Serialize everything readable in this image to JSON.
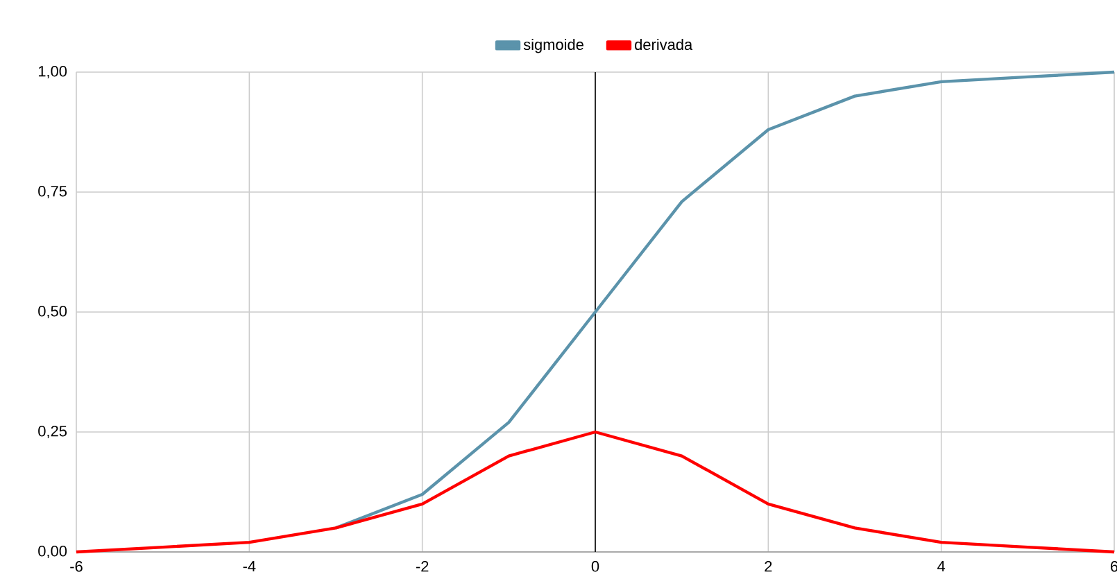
{
  "chart_data": {
    "type": "line",
    "x": [
      -6,
      -5,
      -4,
      -3,
      -2,
      -1,
      0,
      1,
      2,
      3,
      4,
      5,
      6
    ],
    "series": [
      {
        "name": "sigmoide",
        "color": "#5b93ab",
        "values": [
          null,
          null,
          null,
          0.05,
          0.12,
          0.27,
          0.5,
          0.73,
          0.88,
          0.95,
          0.98,
          0.99,
          1.0
        ]
      },
      {
        "name": "derivada",
        "color": "#ff0000",
        "values": [
          0.0,
          0.01,
          0.02,
          0.05,
          0.1,
          0.2,
          0.25,
          0.2,
          0.1,
          0.05,
          0.02,
          0.01,
          0.0
        ]
      }
    ],
    "xlim": [
      -6,
      6
    ],
    "ylim": [
      0,
      1
    ],
    "xticks": [
      -6,
      -4,
      -2,
      0,
      2,
      4,
      6
    ],
    "yticks": [
      {
        "value": 0,
        "label": "0,00"
      },
      {
        "value": 0.25,
        "label": "0,25"
      },
      {
        "value": 0.5,
        "label": "0,50"
      },
      {
        "value": 0.75,
        "label": "0,75"
      },
      {
        "value": 1,
        "label": "1,00"
      }
    ],
    "ref_lines": [
      {
        "axis": "x",
        "value": 0,
        "color": "#000000"
      }
    ],
    "grid": true,
    "legend": "top",
    "marker": "none",
    "line_style": "solid"
  }
}
